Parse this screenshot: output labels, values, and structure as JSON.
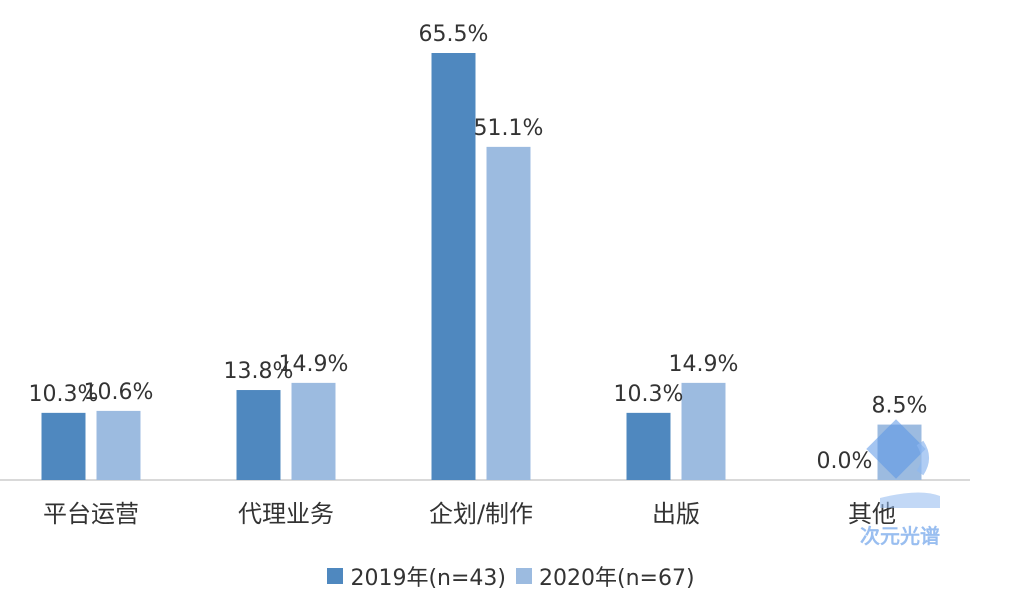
{
  "chart_data": {
    "type": "bar",
    "categories": [
      "平台运营",
      "代理业务",
      "企划/制作",
      "出版",
      "其他"
    ],
    "series": [
      {
        "name": "2019年(n=43)",
        "values": [
          10.3,
          13.8,
          65.5,
          10.3,
          0.0
        ],
        "labels": [
          "10.3%",
          "13.8%",
          "65.5%",
          "10.3%",
          "0.0%"
        ],
        "color": "#4f88bf"
      },
      {
        "name": "2020年(n=67)",
        "values": [
          10.6,
          14.9,
          51.1,
          14.9,
          8.5
        ],
        "labels": [
          "10.6%",
          "14.9%",
          "51.1%",
          "14.9%",
          "8.5%"
        ],
        "color": "#9cbbe0"
      }
    ],
    "ylim": [
      0,
      70
    ],
    "grid": false,
    "legend": "bottom",
    "title": "",
    "xlabel": "",
    "ylabel": ""
  },
  "watermark": {
    "text": "次元光谱",
    "icon": "microscope-icon",
    "color": "#8fb8ef"
  }
}
